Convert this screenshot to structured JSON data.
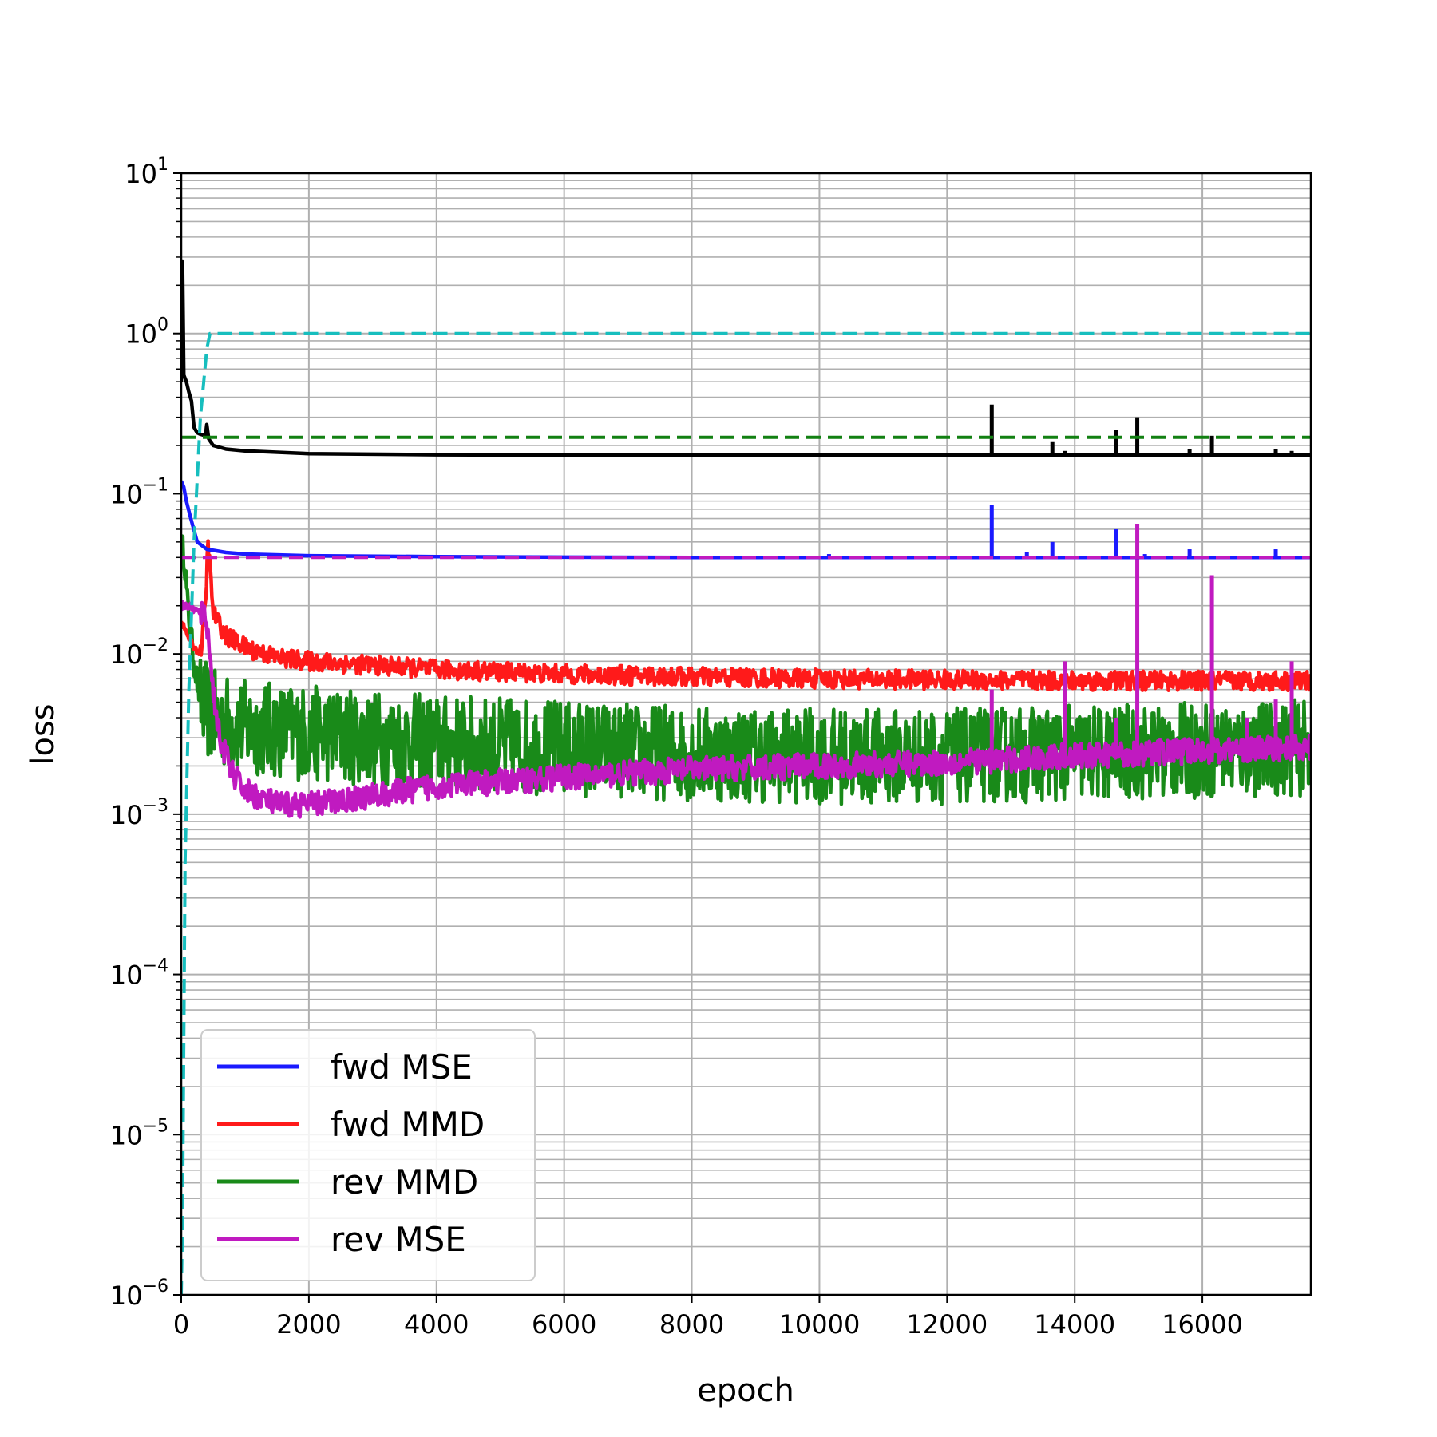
{
  "chart_data": {
    "type": "line",
    "xlabel": "epoch",
    "ylabel": "loss",
    "xlim": [
      0,
      17700
    ],
    "ylim": [
      1e-06,
      10
    ],
    "yscale": "log",
    "grid": true,
    "legend_position": "lower-left",
    "x_ticks": [
      0,
      2000,
      4000,
      6000,
      8000,
      10000,
      12000,
      14000,
      16000
    ],
    "x_tick_labels": [
      "0",
      "2000",
      "4000",
      "6000",
      "8000",
      "10000",
      "12000",
      "14000",
      "16000"
    ],
    "y_ticks": [
      {
        "value": 10,
        "base": "10",
        "exp": "1"
      },
      {
        "value": 1,
        "base": "10",
        "exp": "0"
      },
      {
        "value": 0.1,
        "base": "10",
        "exp": "−1"
      },
      {
        "value": 0.01,
        "base": "10",
        "exp": "−2"
      },
      {
        "value": 0.001,
        "base": "10",
        "exp": "−3"
      },
      {
        "value": 0.0001,
        "base": "10",
        "exp": "−4"
      },
      {
        "value": 1e-05,
        "base": "10",
        "exp": "−5"
      },
      {
        "value": 1e-06,
        "base": "10",
        "exp": "−6"
      }
    ],
    "series": [
      {
        "name": "fwd MSE",
        "color": "#1a1aff",
        "style": "solid",
        "x": [
          0,
          40,
          80,
          150,
          250,
          400,
          700,
          1000,
          2000,
          4000,
          6000,
          8000,
          10000,
          12000,
          14000,
          16000,
          17700
        ],
        "y": [
          0.12,
          0.11,
          0.09,
          0.07,
          0.05,
          0.045,
          0.043,
          0.042,
          0.041,
          0.0405,
          0.0402,
          0.04,
          0.04,
          0.04,
          0.04,
          0.04,
          0.04
        ],
        "spikes": [
          [
            10150,
            0.042
          ],
          [
            12700,
            0.085
          ],
          [
            13250,
            0.043
          ],
          [
            13650,
            0.05
          ],
          [
            14650,
            0.06
          ],
          [
            15100,
            0.042
          ],
          [
            15800,
            0.045
          ],
          [
            17150,
            0.045
          ]
        ]
      },
      {
        "name": "fwd MMD",
        "color": "#ff1a1a",
        "style": "solid",
        "x": [
          0,
          100,
          200,
          300,
          380,
          420,
          500,
          700,
          1000,
          1500,
          2000,
          3000,
          4000,
          6000,
          8000,
          10000,
          12000,
          14000,
          16000,
          17700
        ],
        "y": [
          0.016,
          0.013,
          0.011,
          0.01,
          0.02,
          0.05,
          0.018,
          0.013,
          0.011,
          0.0095,
          0.009,
          0.0085,
          0.008,
          0.0075,
          0.0072,
          0.007,
          0.0069,
          0.0068,
          0.0068,
          0.0068
        ],
        "noise": 0.06
      },
      {
        "name": "rev MMD",
        "color": "#198a19",
        "style": "solid",
        "x": [
          0,
          50,
          100,
          200,
          300,
          500,
          1000,
          2000,
          4000,
          6000,
          8000,
          10000,
          12000,
          14000,
          16000,
          17700
        ],
        "y": [
          0.05,
          0.04,
          0.02,
          0.009,
          0.005,
          0.004,
          0.0035,
          0.0032,
          0.0028,
          0.0026,
          0.0024,
          0.0023,
          0.0023,
          0.0024,
          0.0025,
          0.0026
        ],
        "noise": 0.3
      },
      {
        "name": "rev MSE",
        "color": "#c01ac0",
        "style": "solid",
        "x": [
          0,
          100,
          200,
          300,
          400,
          500,
          600,
          800,
          1000,
          1500,
          2000,
          3000,
          4000,
          6000,
          8000,
          10000,
          12000,
          14000,
          16000,
          17700
        ],
        "y": [
          0.02,
          0.02,
          0.019,
          0.018,
          0.016,
          0.006,
          0.003,
          0.0018,
          0.0014,
          0.00115,
          0.00115,
          0.0013,
          0.0015,
          0.0017,
          0.0019,
          0.002,
          0.0021,
          0.0023,
          0.0025,
          0.0026
        ],
        "noise": 0.08,
        "spikes": [
          [
            12700,
            0.006
          ],
          [
            13850,
            0.009
          ],
          [
            14650,
            0.004
          ],
          [
            14980,
            0.065
          ],
          [
            16150,
            0.031
          ],
          [
            16700,
            0.004
          ],
          [
            17150,
            0.0052
          ],
          [
            17400,
            0.009
          ]
        ]
      },
      {
        "color": "#000000",
        "style": "solid",
        "x": [
          0,
          20,
          40,
          80,
          120,
          160,
          200,
          250,
          300,
          380,
          400,
          430,
          500,
          700,
          1000,
          2000,
          4000,
          6000,
          8000,
          10000,
          12000,
          14000,
          16000,
          17700
        ],
        "y": [
          0.5,
          2.8,
          0.55,
          0.5,
          0.43,
          0.38,
          0.26,
          0.24,
          0.235,
          0.23,
          0.27,
          0.22,
          0.2,
          0.19,
          0.185,
          0.178,
          0.175,
          0.174,
          0.174,
          0.174,
          0.174,
          0.174,
          0.174,
          0.174
        ],
        "spikes": [
          [
            10150,
            0.18
          ],
          [
            12700,
            0.36
          ],
          [
            13250,
            0.18
          ],
          [
            13650,
            0.21
          ],
          [
            13850,
            0.185
          ],
          [
            14650,
            0.25
          ],
          [
            14980,
            0.3
          ],
          [
            15800,
            0.19
          ],
          [
            16150,
            0.23
          ],
          [
            17150,
            0.19
          ],
          [
            17400,
            0.185
          ]
        ]
      },
      {
        "color": "#17bebe",
        "style": "dashed",
        "x": [
          0,
          20,
          60,
          120,
          200,
          300,
          400,
          450,
          17700
        ],
        "y": [
          1e-06,
          3e-06,
          0.0005,
          0.006,
          0.05,
          0.3,
          0.8,
          1.0,
          1.0
        ]
      },
      {
        "color": "#128012",
        "style": "dashed",
        "x": [
          0,
          17700
        ],
        "y": [
          0.225,
          0.225
        ]
      },
      {
        "color": "#c01ac0",
        "style": "dashed",
        "x": [
          0,
          17700
        ],
        "y": [
          0.04,
          0.04
        ]
      }
    ]
  }
}
